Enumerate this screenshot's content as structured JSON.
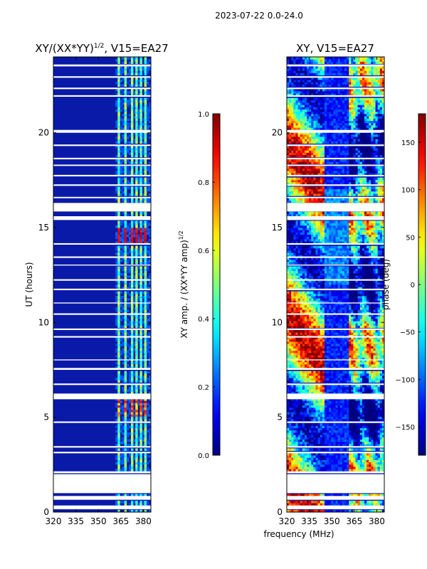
{
  "figure_title": "2023-07-22 0.0-24.0",
  "x_label": "frequency (MHz)",
  "colors": {
    "axis": "#000000",
    "background": "#00008b"
  },
  "chart_data": [
    {
      "type": "heatmap",
      "title_main": "XY/(XX*YY)",
      "title_sup": "1/2",
      "title_suffix": ", V15=EA27",
      "xlabel": "",
      "ylabel": "UT (hours)",
      "xlim": [
        320,
        385
      ],
      "ylim": [
        0,
        24
      ],
      "x_ticks": [
        320,
        335,
        350,
        365,
        380
      ],
      "y_ticks": [
        0,
        5,
        10,
        15,
        20
      ],
      "rfi_channels_mhz": [
        364.0,
        368.0,
        373.0,
        375.5,
        378.5,
        381.0
      ],
      "colorbar": {
        "label_main": "XY amp. / (XX*YY amp)",
        "label_sup": "1/2",
        "range": [
          0.0,
          1.0
        ],
        "ticks": [
          "0.0",
          "0.2",
          "0.4",
          "0.6",
          "0.8",
          "1.0"
        ],
        "tick_values": [
          0.0,
          0.2,
          0.4,
          0.6,
          0.8,
          1.0
        ]
      }
    },
    {
      "type": "heatmap",
      "title_main": "XY, V15=EA27",
      "title_sup": "",
      "title_suffix": "",
      "xlabel": "frequency (MHz)",
      "ylabel": "",
      "xlim": [
        320,
        385
      ],
      "ylim": [
        0,
        24
      ],
      "x_ticks": [
        320,
        335,
        350,
        365,
        380
      ],
      "y_ticks": [
        0,
        5,
        10,
        15,
        20
      ],
      "colorbar": {
        "label_main": "phase (deg)",
        "label_sup": "",
        "range": [
          -180,
          180
        ],
        "ticks": [
          "−150",
          "−100",
          "−50",
          "0",
          "50",
          "100",
          "150"
        ],
        "tick_values": [
          -150,
          -100,
          -50,
          0,
          50,
          100,
          150
        ]
      }
    }
  ],
  "flagged_time_ranges_hours": [
    [
      0.15,
      0.35
    ],
    [
      0.65,
      0.85
    ],
    [
      1.0,
      2.0
    ],
    [
      2.05,
      2.15
    ],
    [
      3.1,
      3.18
    ],
    [
      3.4,
      3.48
    ],
    [
      4.7,
      4.78
    ],
    [
      5.95,
      6.25
    ],
    [
      6.7,
      6.78
    ],
    [
      7.5,
      7.6
    ],
    [
      8.0,
      8.05
    ],
    [
      9.2,
      9.28
    ],
    [
      9.6,
      9.68
    ],
    [
      10.4,
      10.48
    ],
    [
      11.0,
      11.05
    ],
    [
      11.7,
      11.78
    ],
    [
      12.2,
      12.28
    ],
    [
      13.0,
      13.05
    ],
    [
      13.4,
      13.48
    ],
    [
      14.1,
      14.18
    ],
    [
      15.4,
      15.6
    ],
    [
      15.85,
      16.3
    ],
    [
      16.55,
      16.62
    ],
    [
      17.2,
      17.28
    ],
    [
      17.7,
      17.78
    ],
    [
      18.25,
      18.32
    ],
    [
      18.6,
      18.68
    ],
    [
      19.3,
      19.38
    ],
    [
      20.0,
      20.15
    ],
    [
      21.9,
      21.98
    ],
    [
      22.3,
      22.38
    ],
    [
      22.9,
      22.98
    ],
    [
      23.5,
      23.6
    ]
  ]
}
